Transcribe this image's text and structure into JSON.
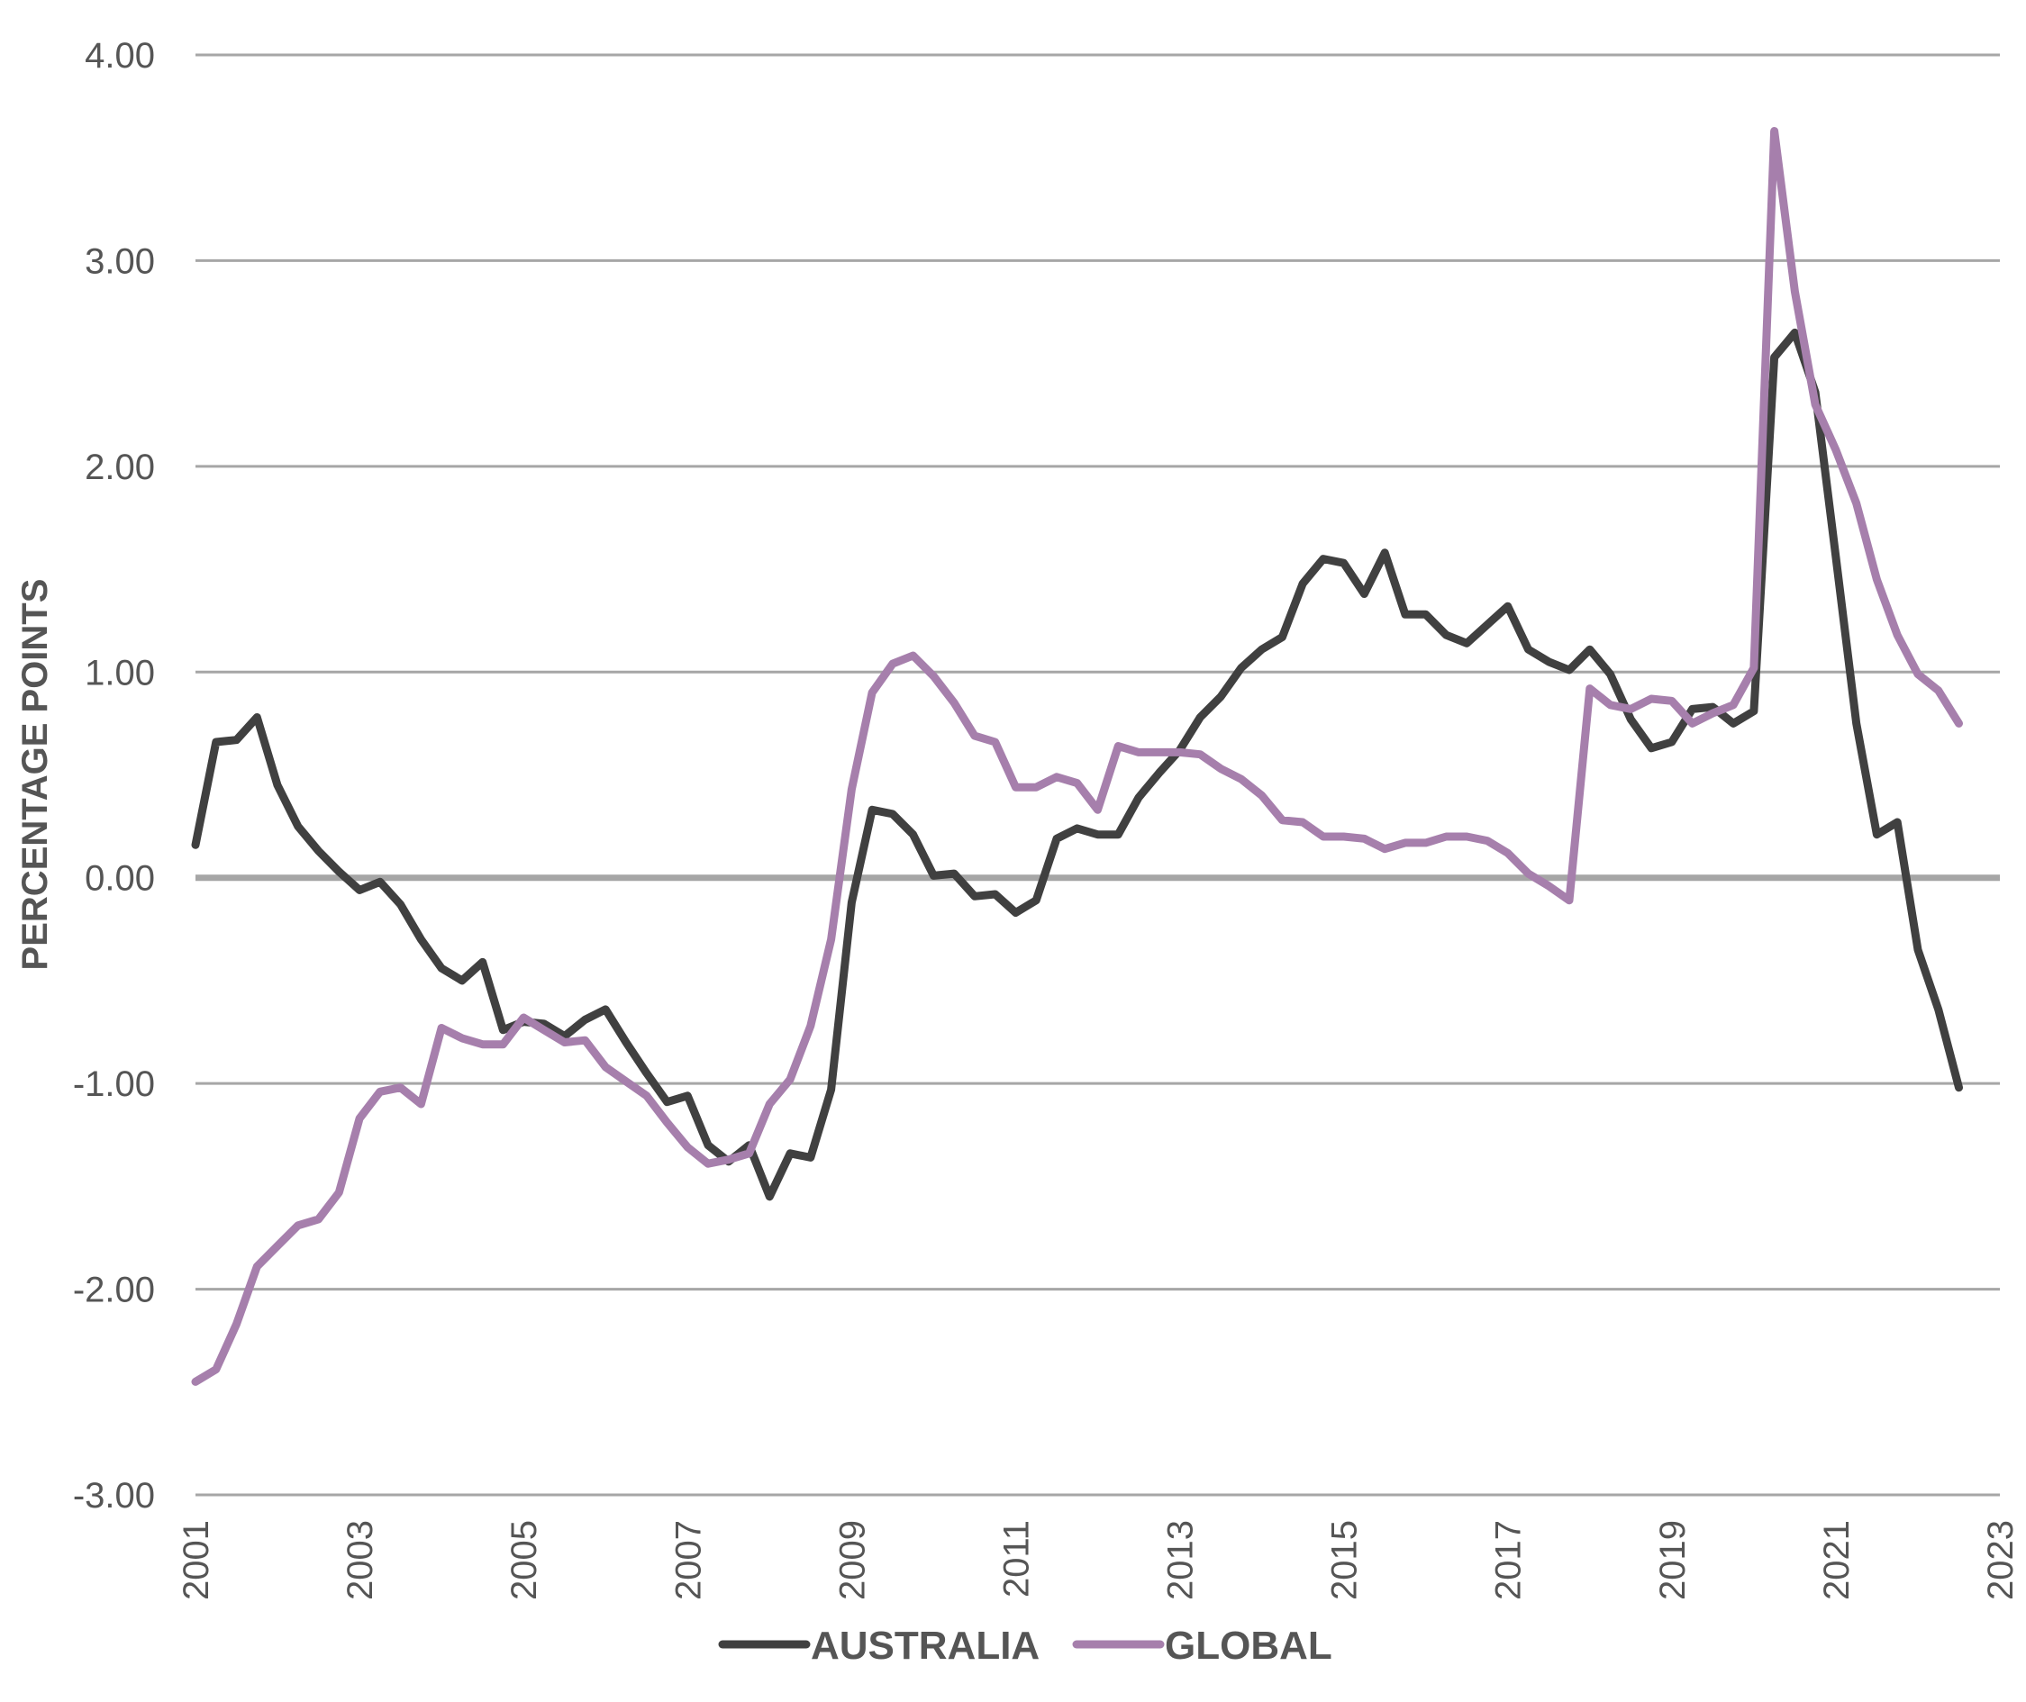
{
  "chart_data": {
    "type": "line",
    "title": "",
    "xlabel": "",
    "ylabel": "PERCENTAGE POINTS",
    "xlim": [
      2001,
      2023
    ],
    "ylim": [
      -3,
      4
    ],
    "x_ticks": [
      "2001",
      "2003",
      "2005",
      "2007",
      "2009",
      "2011",
      "2013",
      "2015",
      "2017",
      "2019",
      "2021",
      "2023"
    ],
    "y_ticks": [
      "4.00",
      "3.00",
      "2.00",
      "1.00",
      "0.00",
      "-1.00",
      "-2.00",
      "-3.00"
    ],
    "grid": true,
    "legend_position": "bottom",
    "series": [
      {
        "name": "AUSTRALIA",
        "color": "#404040",
        "points": [
          [
            2001.0,
            0.16
          ],
          [
            2001.25,
            0.66
          ],
          [
            2001.5,
            0.67
          ],
          [
            2001.75,
            0.78
          ],
          [
            2002.0,
            0.45
          ],
          [
            2002.25,
            0.25
          ],
          [
            2002.5,
            0.13
          ],
          [
            2002.75,
            0.03
          ],
          [
            2003.0,
            -0.06
          ],
          [
            2003.25,
            -0.02
          ],
          [
            2003.5,
            -0.13
          ],
          [
            2003.75,
            -0.3
          ],
          [
            2004.0,
            -0.44
          ],
          [
            2004.25,
            -0.5
          ],
          [
            2004.5,
            -0.41
          ],
          [
            2004.75,
            -0.74
          ],
          [
            2005.0,
            -0.7
          ],
          [
            2005.25,
            -0.71
          ],
          [
            2005.5,
            -0.77
          ],
          [
            2005.75,
            -0.69
          ],
          [
            2006.0,
            -0.64
          ],
          [
            2006.25,
            -0.8
          ],
          [
            2006.5,
            -0.95
          ],
          [
            2006.75,
            -1.09
          ],
          [
            2007.0,
            -1.06
          ],
          [
            2007.25,
            -1.3
          ],
          [
            2007.5,
            -1.38
          ],
          [
            2007.75,
            -1.3
          ],
          [
            2008.0,
            -1.55
          ],
          [
            2008.25,
            -1.34
          ],
          [
            2008.5,
            -1.36
          ],
          [
            2008.75,
            -1.03
          ],
          [
            2009.0,
            -0.12
          ],
          [
            2009.25,
            0.33
          ],
          [
            2009.5,
            0.31
          ],
          [
            2009.75,
            0.21
          ],
          [
            2010.0,
            0.01
          ],
          [
            2010.25,
            0.02
          ],
          [
            2010.5,
            -0.09
          ],
          [
            2010.75,
            -0.08
          ],
          [
            2011.0,
            -0.17
          ],
          [
            2011.25,
            -0.11
          ],
          [
            2011.5,
            0.19
          ],
          [
            2011.75,
            0.24
          ],
          [
            2012.0,
            0.21
          ],
          [
            2012.25,
            0.21
          ],
          [
            2012.5,
            0.39
          ],
          [
            2012.75,
            0.51
          ],
          [
            2013.0,
            0.62
          ],
          [
            2013.25,
            0.78
          ],
          [
            2013.5,
            0.88
          ],
          [
            2013.75,
            1.02
          ],
          [
            2014.0,
            1.11
          ],
          [
            2014.25,
            1.17
          ],
          [
            2014.5,
            1.43
          ],
          [
            2014.75,
            1.55
          ],
          [
            2015.0,
            1.53
          ],
          [
            2015.25,
            1.38
          ],
          [
            2015.5,
            1.58
          ],
          [
            2015.75,
            1.28
          ],
          [
            2016.0,
            1.28
          ],
          [
            2016.25,
            1.18
          ],
          [
            2016.5,
            1.14
          ],
          [
            2016.75,
            1.23
          ],
          [
            2017.0,
            1.32
          ],
          [
            2017.25,
            1.11
          ],
          [
            2017.5,
            1.05
          ],
          [
            2017.75,
            1.01
          ],
          [
            2018.0,
            1.11
          ],
          [
            2018.25,
            0.99
          ],
          [
            2018.5,
            0.77
          ],
          [
            2018.75,
            0.63
          ],
          [
            2019.0,
            0.66
          ],
          [
            2019.25,
            0.82
          ],
          [
            2019.5,
            0.83
          ],
          [
            2019.75,
            0.75
          ],
          [
            2020.0,
            0.81
          ],
          [
            2020.25,
            2.53
          ],
          [
            2020.5,
            2.65
          ],
          [
            2020.75,
            2.36
          ],
          [
            2021.0,
            1.56
          ],
          [
            2021.25,
            0.75
          ],
          [
            2021.5,
            0.21
          ],
          [
            2021.75,
            0.27
          ],
          [
            2022.0,
            -0.35
          ],
          [
            2022.25,
            -0.64
          ],
          [
            2022.5,
            -1.02
          ]
        ]
      },
      {
        "name": "GLOBAL",
        "color": "#a67fac",
        "points": [
          [
            2001.0,
            -2.45
          ],
          [
            2001.25,
            -2.39
          ],
          [
            2001.5,
            -2.17
          ],
          [
            2001.75,
            -1.89
          ],
          [
            2002.0,
            -1.79
          ],
          [
            2002.25,
            -1.69
          ],
          [
            2002.5,
            -1.66
          ],
          [
            2002.75,
            -1.53
          ],
          [
            2003.0,
            -1.17
          ],
          [
            2003.25,
            -1.04
          ],
          [
            2003.5,
            -1.02
          ],
          [
            2003.75,
            -1.1
          ],
          [
            2004.0,
            -0.73
          ],
          [
            2004.25,
            -0.78
          ],
          [
            2004.5,
            -0.81
          ],
          [
            2004.75,
            -0.81
          ],
          [
            2005.0,
            -0.68
          ],
          [
            2005.25,
            -0.74
          ],
          [
            2005.5,
            -0.8
          ],
          [
            2005.75,
            -0.79
          ],
          [
            2006.0,
            -0.92
          ],
          [
            2006.25,
            -0.99
          ],
          [
            2006.5,
            -1.06
          ],
          [
            2006.75,
            -1.19
          ],
          [
            2007.0,
            -1.31
          ],
          [
            2007.25,
            -1.39
          ],
          [
            2007.5,
            -1.37
          ],
          [
            2007.75,
            -1.34
          ],
          [
            2008.0,
            -1.1
          ],
          [
            2008.25,
            -0.98
          ],
          [
            2008.5,
            -0.72
          ],
          [
            2008.75,
            -0.3
          ],
          [
            2009.0,
            0.43
          ],
          [
            2009.25,
            0.9
          ],
          [
            2009.5,
            1.04
          ],
          [
            2009.75,
            1.08
          ],
          [
            2010.0,
            0.98
          ],
          [
            2010.25,
            0.85
          ],
          [
            2010.5,
            0.69
          ],
          [
            2010.75,
            0.66
          ],
          [
            2011.0,
            0.44
          ],
          [
            2011.25,
            0.44
          ],
          [
            2011.5,
            0.49
          ],
          [
            2011.75,
            0.46
          ],
          [
            2012.0,
            0.33
          ],
          [
            2012.25,
            0.64
          ],
          [
            2012.5,
            0.61
          ],
          [
            2012.75,
            0.61
          ],
          [
            2013.0,
            0.61
          ],
          [
            2013.25,
            0.6
          ],
          [
            2013.5,
            0.53
          ],
          [
            2013.75,
            0.48
          ],
          [
            2014.0,
            0.4
          ],
          [
            2014.25,
            0.28
          ],
          [
            2014.5,
            0.27
          ],
          [
            2014.75,
            0.2
          ],
          [
            2015.0,
            0.2
          ],
          [
            2015.25,
            0.19
          ],
          [
            2015.5,
            0.14
          ],
          [
            2015.75,
            0.17
          ],
          [
            2016.0,
            0.17
          ],
          [
            2016.25,
            0.2
          ],
          [
            2016.5,
            0.2
          ],
          [
            2016.75,
            0.18
          ],
          [
            2017.0,
            0.12
          ],
          [
            2017.25,
            0.02
          ],
          [
            2017.5,
            -0.04
          ],
          [
            2017.75,
            -0.11
          ],
          [
            2018.0,
            0.92
          ],
          [
            2018.25,
            0.84
          ],
          [
            2018.5,
            0.82
          ],
          [
            2018.75,
            0.87
          ],
          [
            2019.0,
            0.86
          ],
          [
            2019.25,
            0.75
          ],
          [
            2019.5,
            0.8
          ],
          [
            2019.75,
            0.84
          ],
          [
            2020.0,
            1.02
          ],
          [
            2020.25,
            3.63
          ],
          [
            2020.5,
            2.85
          ],
          [
            2020.75,
            2.3
          ],
          [
            2021.0,
            2.08
          ],
          [
            2021.25,
            1.82
          ],
          [
            2021.5,
            1.45
          ],
          [
            2021.75,
            1.18
          ],
          [
            2022.0,
            0.99
          ],
          [
            2022.25,
            0.91
          ],
          [
            2022.5,
            0.75
          ]
        ]
      }
    ]
  }
}
